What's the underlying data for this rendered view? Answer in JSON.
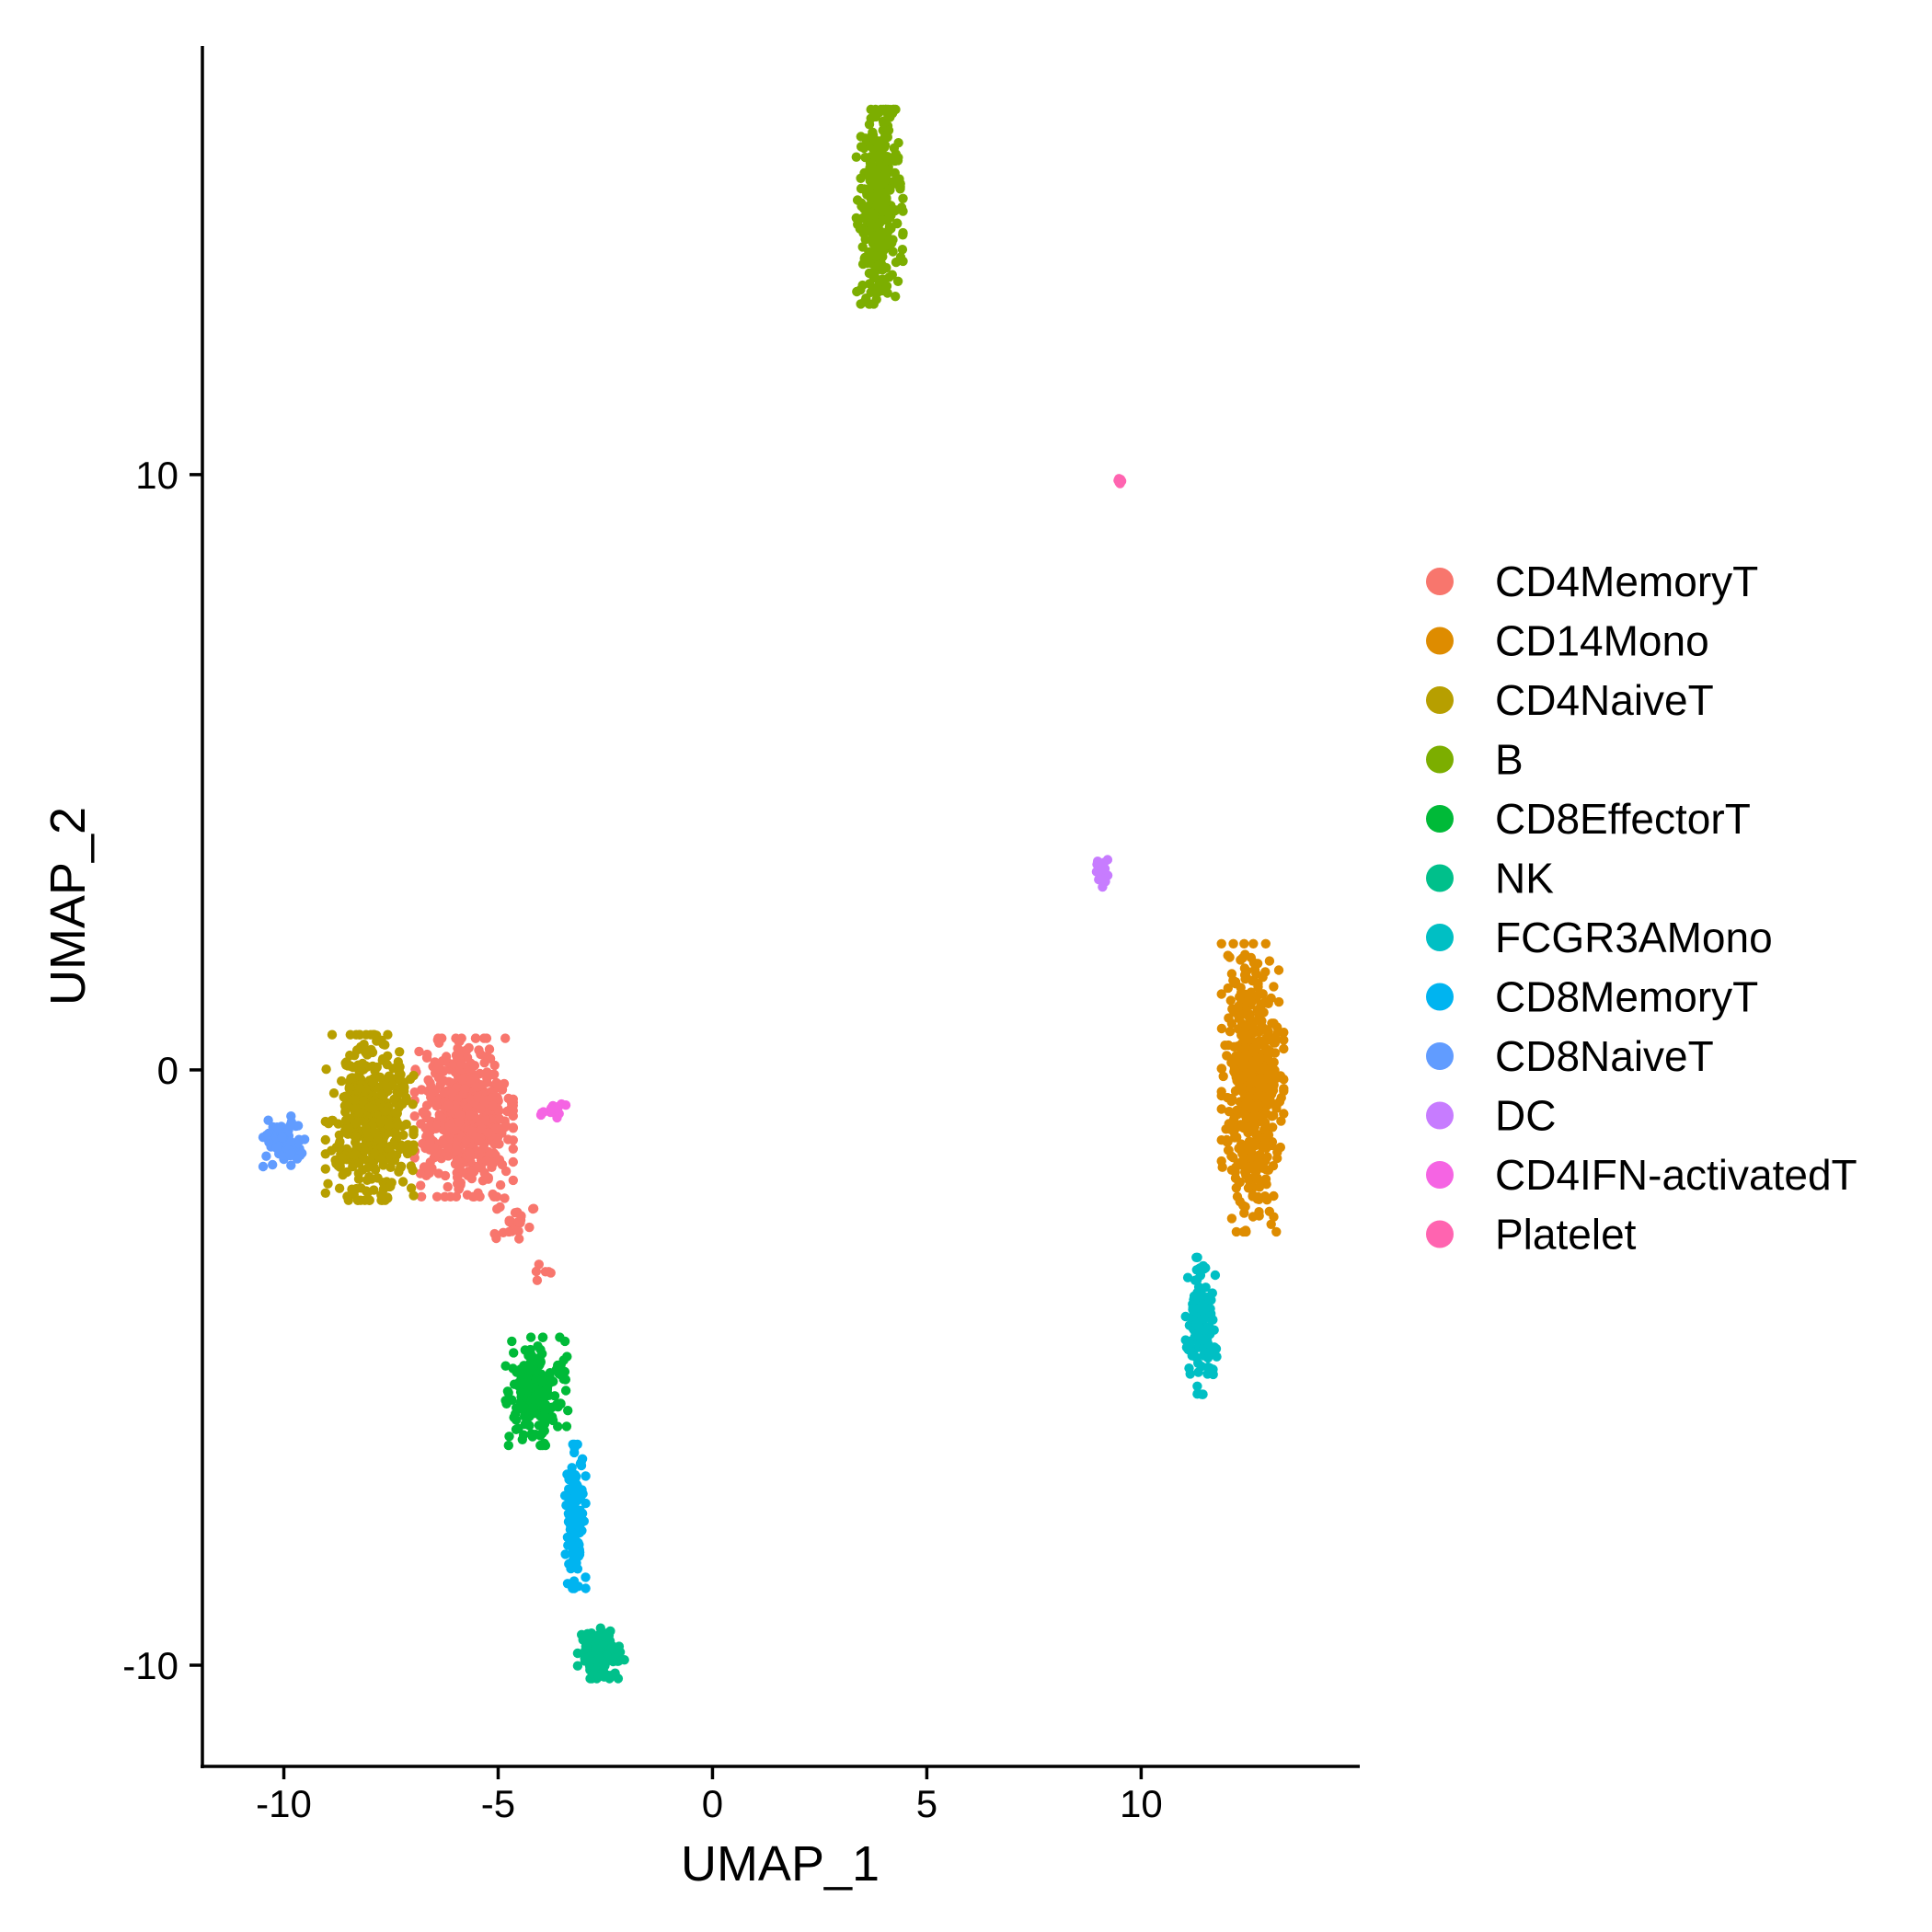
{
  "chart_data": {
    "type": "scatter",
    "title": "",
    "xlabel": "UMAP_1",
    "ylabel": "UMAP_2",
    "xlim": [
      -11.9,
      15.1
    ],
    "ylim": [
      -11.7,
      17.2
    ],
    "xticks": [
      -10,
      -5,
      0,
      5,
      10
    ],
    "yticks": [
      -10,
      0,
      10
    ],
    "xtick_labels": [
      "-10",
      "-5",
      "0",
      "5",
      "10"
    ],
    "ytick_labels": [
      "-10",
      "0",
      "10"
    ],
    "grid": false,
    "legend_position": "right",
    "series": [
      {
        "name": "CD4MemoryT",
        "color": "#F8766D",
        "clusters": [
          [
            -5.8,
            -0.8,
            0.95,
            1.1,
            560
          ],
          [
            -4.6,
            -2.5,
            0.4,
            0.3,
            25
          ],
          [
            -4.0,
            -3.4,
            0.2,
            0.15,
            6
          ]
        ]
      },
      {
        "name": "CD14Mono",
        "color": "#DE8C00",
        "clusters": [
          [
            12.6,
            -0.3,
            0.6,
            2.0,
            520
          ]
        ]
      },
      {
        "name": "CD4NaiveT",
        "color": "#B79F00",
        "clusters": [
          [
            -8.0,
            -0.8,
            0.85,
            1.15,
            470
          ]
        ]
      },
      {
        "name": "B",
        "color": "#7CAE00",
        "clusters": [
          [
            3.9,
            14.5,
            0.45,
            1.35,
            330
          ]
        ]
      },
      {
        "name": "CD8EffectorT",
        "color": "#00BA38",
        "clusters": [
          [
            -4.1,
            -5.4,
            0.6,
            0.75,
            200
          ]
        ]
      },
      {
        "name": "NK",
        "color": "#00C08B",
        "clusters": [
          [
            -2.6,
            -9.8,
            0.45,
            0.35,
            150
          ]
        ]
      },
      {
        "name": "FCGR3AMono",
        "color": "#00BFC4",
        "clusters": [
          [
            11.4,
            -4.3,
            0.3,
            0.95,
            150
          ]
        ]
      },
      {
        "name": "CD8MemoryT",
        "color": "#00B4F0",
        "clusters": [
          [
            -3.2,
            -7.5,
            0.2,
            1.0,
            130
          ]
        ]
      },
      {
        "name": "CD8NaiveT",
        "color": "#619CFF",
        "clusters": [
          [
            -10.0,
            -1.2,
            0.4,
            0.35,
            70
          ]
        ]
      },
      {
        "name": "DC",
        "color": "#C77CFF",
        "clusters": [
          [
            9.1,
            3.3,
            0.15,
            0.25,
            18
          ]
        ]
      },
      {
        "name": "CD4IFN-activatedT",
        "color": "#F564E3",
        "clusters": [
          [
            -3.7,
            -0.7,
            0.25,
            0.12,
            20
          ]
        ]
      },
      {
        "name": "Platelet",
        "color": "#FF64B0",
        "clusters": [
          [
            9.5,
            9.9,
            0.04,
            0.06,
            6
          ]
        ]
      }
    ]
  }
}
